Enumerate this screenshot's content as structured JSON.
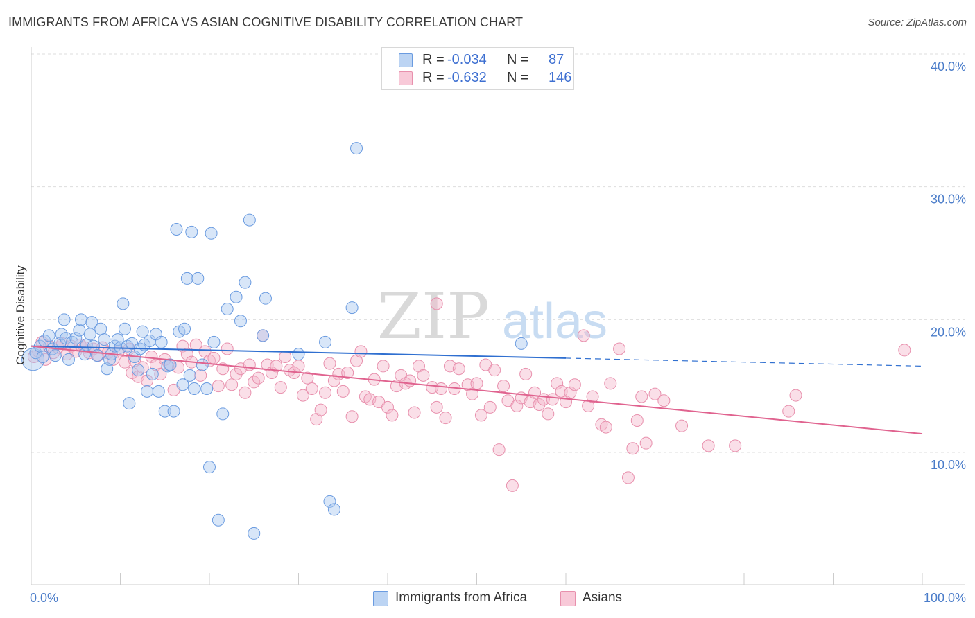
{
  "title": "IMMIGRANTS FROM AFRICA VS ASIAN COGNITIVE DISABILITY CORRELATION CHART",
  "source": "Source: ZipAtlas.com",
  "watermark": {
    "zip": "ZIP",
    "atlas": "atlas"
  },
  "colors": {
    "blue_fill": "#a9c8f0",
    "blue_stroke": "#6a9be0",
    "blue_line": "#2f6fd0",
    "pink_fill": "#f5b8cc",
    "pink_stroke": "#e890ad",
    "pink_line": "#e0638f",
    "tick_label": "#4a7cc9",
    "grid": "#dddddd"
  },
  "legend_top": [
    {
      "r_label": "R =",
      "r_value": "-0.034",
      "n_label": "N =",
      "n_value": "87"
    },
    {
      "r_label": "R =",
      "r_value": "-0.632",
      "n_label": "N =",
      "n_value": "146"
    }
  ],
  "legend_bottom": [
    "Immigrants from Africa",
    "Asians"
  ],
  "chart_data": {
    "type": "scatter",
    "title": "IMMIGRANTS FROM AFRICA VS ASIAN COGNITIVE DISABILITY CORRELATION CHART",
    "xlabel": "",
    "ylabel": "Cognitive Disability",
    "xlim": [
      0,
      100
    ],
    "ylim": [
      0,
      41
    ],
    "x_tick_labels": [
      "0.0%",
      "100.0%"
    ],
    "y_ticks": [
      10,
      20,
      30,
      40
    ],
    "y_tick_labels": [
      "10.0%",
      "20.0%",
      "30.0%",
      "40.0%"
    ],
    "grid": "horizontal dashed",
    "legend_position": "top-center",
    "series": [
      {
        "name": "Immigrants from Africa",
        "color": "#a9c8f0",
        "trend": {
          "x": [
            0,
            60,
            100
          ],
          "y": [
            18.0,
            17.1,
            16.5
          ],
          "solid_until": 60
        },
        "points": [
          [
            0.2,
            17.0
          ],
          [
            0.5,
            17.5
          ],
          [
            1,
            18.0
          ],
          [
            1.3,
            17.2
          ],
          [
            1.5,
            18.4
          ],
          [
            2,
            18.8
          ],
          [
            2.4,
            17.8
          ],
          [
            2.7,
            17.3
          ],
          [
            3.2,
            18.2
          ],
          [
            3.4,
            18.9
          ],
          [
            3.7,
            20.0
          ],
          [
            3.9,
            18.6
          ],
          [
            4.2,
            17.0
          ],
          [
            4.6,
            18.3
          ],
          [
            5,
            18.6
          ],
          [
            5.4,
            19.2
          ],
          [
            5.6,
            20.0
          ],
          [
            6,
            17.4
          ],
          [
            6.2,
            18.1
          ],
          [
            6.6,
            18.9
          ],
          [
            6.8,
            19.8
          ],
          [
            7,
            18.0
          ],
          [
            7.4,
            17.3
          ],
          [
            7.8,
            19.3
          ],
          [
            8.2,
            18.5
          ],
          [
            8.5,
            16.3
          ],
          [
            8.8,
            17.0
          ],
          [
            9,
            17.4
          ],
          [
            9.4,
            18.0
          ],
          [
            9.7,
            18.5
          ],
          [
            10,
            17.9
          ],
          [
            10.3,
            21.2
          ],
          [
            10.5,
            19.3
          ],
          [
            10.8,
            18.0
          ],
          [
            11,
            13.7
          ],
          [
            11.3,
            18.2
          ],
          [
            11.6,
            17.2
          ],
          [
            12,
            16.2
          ],
          [
            12.2,
            17.8
          ],
          [
            12.5,
            19.1
          ],
          [
            12.7,
            18.1
          ],
          [
            13,
            14.6
          ],
          [
            13.3,
            18.4
          ],
          [
            13.6,
            15.9
          ],
          [
            14,
            18.9
          ],
          [
            14.3,
            14.6
          ],
          [
            14.6,
            18.3
          ],
          [
            15,
            13.1
          ],
          [
            15.3,
            16.5
          ],
          [
            15.6,
            16.6
          ],
          [
            16,
            13.1
          ],
          [
            16.3,
            26.8
          ],
          [
            16.6,
            19.1
          ],
          [
            17,
            15.1
          ],
          [
            17.2,
            19.3
          ],
          [
            17.5,
            23.1
          ],
          [
            17.8,
            15.8
          ],
          [
            18,
            26.6
          ],
          [
            18.3,
            14.8
          ],
          [
            18.7,
            23.1
          ],
          [
            19.2,
            16.6
          ],
          [
            19.7,
            14.8
          ],
          [
            20,
            8.9
          ],
          [
            20.2,
            26.5
          ],
          [
            20.5,
            18.3
          ],
          [
            21,
            4.9
          ],
          [
            21.5,
            12.9
          ],
          [
            22,
            20.8
          ],
          [
            23,
            21.7
          ],
          [
            23.5,
            19.9
          ],
          [
            24,
            22.8
          ],
          [
            24.5,
            27.5
          ],
          [
            25,
            3.9
          ],
          [
            26,
            18.8
          ],
          [
            26.3,
            21.6
          ],
          [
            30,
            17.4
          ],
          [
            33,
            18.3
          ],
          [
            33.5,
            6.3
          ],
          [
            34,
            5.7
          ],
          [
            36,
            20.9
          ],
          [
            36.5,
            32.9
          ],
          [
            55,
            18.2
          ]
        ]
      },
      {
        "name": "Asians",
        "color": "#f5b8cc",
        "trend": {
          "x": [
            0,
            100
          ],
          "y": [
            18.0,
            11.4
          ]
        },
        "points": [
          [
            0.3,
            17.2
          ],
          [
            0.8,
            17.6
          ],
          [
            1.2,
            18.3
          ],
          [
            1.6,
            17.0
          ],
          [
            2,
            18.0
          ],
          [
            2.5,
            17.5
          ],
          [
            3,
            17.9
          ],
          [
            3.5,
            18.2
          ],
          [
            4,
            17.4
          ],
          [
            4.5,
            18.0
          ],
          [
            5,
            17.6
          ],
          [
            5.5,
            18.1
          ],
          [
            6,
            17.9
          ],
          [
            6.5,
            17.5
          ],
          [
            7,
            17.8
          ],
          [
            7.5,
            17.3
          ],
          [
            8,
            17.9
          ],
          [
            8.6,
            17.5
          ],
          [
            9.2,
            17.0
          ],
          [
            9.8,
            17.6
          ],
          [
            10.5,
            16.8
          ],
          [
            11,
            17.8
          ],
          [
            11.3,
            16.0
          ],
          [
            11.6,
            16.9
          ],
          [
            12,
            15.7
          ],
          [
            12.5,
            16.4
          ],
          [
            13,
            15.4
          ],
          [
            13.5,
            17.2
          ],
          [
            14,
            16.6
          ],
          [
            14.5,
            15.9
          ],
          [
            15,
            17.0
          ],
          [
            15.5,
            16.6
          ],
          [
            16,
            14.7
          ],
          [
            16.5,
            16.4
          ],
          [
            17,
            18.0
          ],
          [
            17.5,
            17.4
          ],
          [
            18,
            16.8
          ],
          [
            18.5,
            18.1
          ],
          [
            19,
            15.8
          ],
          [
            19.5,
            17.6
          ],
          [
            20,
            16.9
          ],
          [
            20.5,
            17.1
          ],
          [
            21,
            15.0
          ],
          [
            21.5,
            16.3
          ],
          [
            22,
            17.8
          ],
          [
            22.5,
            15.1
          ],
          [
            23,
            15.9
          ],
          [
            23.5,
            16.3
          ],
          [
            24,
            14.5
          ],
          [
            24.5,
            16.6
          ],
          [
            25,
            15.3
          ],
          [
            25.5,
            15.6
          ],
          [
            26,
            18.8
          ],
          [
            26.5,
            16.6
          ],
          [
            27,
            16.0
          ],
          [
            27.5,
            16.5
          ],
          [
            28,
            14.9
          ],
          [
            28.5,
            17.2
          ],
          [
            29,
            16.2
          ],
          [
            29.5,
            16.0
          ],
          [
            30,
            16.5
          ],
          [
            30.5,
            14.3
          ],
          [
            31,
            15.6
          ],
          [
            31.5,
            14.8
          ],
          [
            32,
            12.5
          ],
          [
            32.5,
            13.2
          ],
          [
            33,
            14.5
          ],
          [
            33.5,
            16.7
          ],
          [
            34,
            15.4
          ],
          [
            34.5,
            15.9
          ],
          [
            35,
            14.6
          ],
          [
            35.5,
            16.0
          ],
          [
            36,
            12.7
          ],
          [
            36.5,
            16.9
          ],
          [
            37,
            17.6
          ],
          [
            37.5,
            14.2
          ],
          [
            38,
            14.0
          ],
          [
            38.5,
            15.5
          ],
          [
            39,
            13.8
          ],
          [
            39.5,
            16.5
          ],
          [
            40,
            13.4
          ],
          [
            40.5,
            12.8
          ],
          [
            41,
            15.0
          ],
          [
            41.5,
            15.8
          ],
          [
            42,
            15.2
          ],
          [
            42.5,
            15.4
          ],
          [
            43,
            13.0
          ],
          [
            43.5,
            16.5
          ],
          [
            44,
            15.8
          ],
          [
            45,
            14.9
          ],
          [
            45.5,
            13.4
          ],
          [
            46,
            14.8
          ],
          [
            46.5,
            12.6
          ],
          [
            47,
            16.5
          ],
          [
            47.5,
            14.8
          ],
          [
            48,
            16.3
          ],
          [
            49,
            15.1
          ],
          [
            49.5,
            14.4
          ],
          [
            50,
            15.2
          ],
          [
            50.5,
            12.8
          ],
          [
            51,
            16.6
          ],
          [
            51.5,
            13.4
          ],
          [
            52,
            16.2
          ],
          [
            52.5,
            10.2
          ],
          [
            53,
            15.0
          ],
          [
            53.5,
            13.9
          ],
          [
            54,
            7.5
          ],
          [
            54.5,
            13.5
          ],
          [
            55,
            14.1
          ],
          [
            55.5,
            15.9
          ],
          [
            56,
            13.8
          ],
          [
            56.5,
            14.5
          ],
          [
            57,
            13.6
          ],
          [
            57.5,
            14.0
          ],
          [
            58,
            12.9
          ],
          [
            58.5,
            14.0
          ],
          [
            59,
            15.2
          ],
          [
            59.5,
            14.6
          ],
          [
            60,
            13.8
          ],
          [
            60.5,
            14.5
          ],
          [
            61,
            15.1
          ],
          [
            62,
            18.8
          ],
          [
            62.5,
            13.5
          ],
          [
            63,
            14.2
          ],
          [
            64,
            12.1
          ],
          [
            64.5,
            11.9
          ],
          [
            65,
            15.2
          ],
          [
            66,
            17.8
          ],
          [
            67,
            8.1
          ],
          [
            67.5,
            10.3
          ],
          [
            68,
            12.4
          ],
          [
            68.5,
            14.2
          ],
          [
            69,
            10.7
          ],
          [
            70,
            14.4
          ],
          [
            71,
            13.9
          ],
          [
            73,
            12.0
          ],
          [
            76,
            10.5
          ],
          [
            79,
            10.5
          ],
          [
            85,
            13.1
          ],
          [
            85.8,
            14.3
          ],
          [
            98,
            17.7
          ],
          [
            45.5,
            21.2
          ]
        ]
      }
    ]
  }
}
